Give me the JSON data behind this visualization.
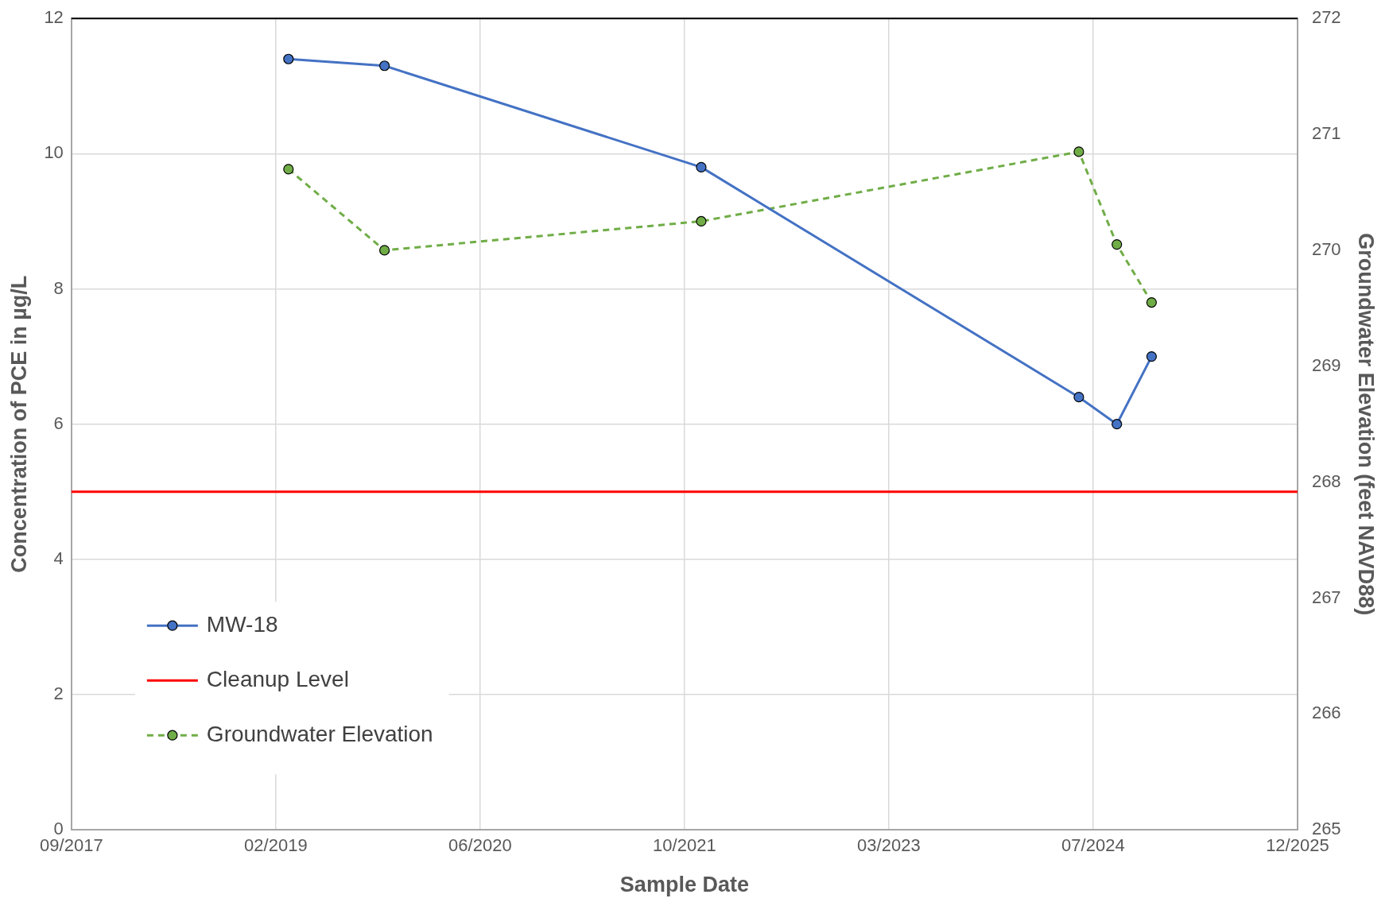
{
  "chart_data": {
    "type": "line",
    "xlabel": "Sample Date",
    "ylabel": "Concentration of PCE in µg/L",
    "y2label": "Groundwater Elevation (feet NAVD88)",
    "xlim": [
      "2017-09-22",
      "2025-12-09"
    ],
    "xticks": [
      {
        "value": "2017-09-22",
        "label": "09/2017"
      },
      {
        "value": "2019-02-04",
        "label": "02/2019"
      },
      {
        "value": "2020-06-18",
        "label": "06/2020"
      },
      {
        "value": "2021-10-31",
        "label": "10/2021"
      },
      {
        "value": "2023-03-15",
        "label": "03/2023"
      },
      {
        "value": "2024-07-27",
        "label": "07/2024"
      },
      {
        "value": "2025-12-09",
        "label": "12/2025"
      }
    ],
    "ylim": [
      0,
      12
    ],
    "yticks": [
      0,
      2,
      4,
      6,
      8,
      10,
      12
    ],
    "y2lim": [
      265,
      272
    ],
    "y2ticks": [
      265,
      266,
      267,
      268,
      269,
      270,
      271,
      272
    ],
    "series": [
      {
        "name": "MW-18",
        "color": "#4472c4",
        "x": [
          "2019-03-07",
          "2019-10-28",
          "2021-12-11",
          "2024-06-22",
          "2024-09-23",
          "2024-12-17"
        ],
        "values": [
          11.4,
          11.3,
          9.8,
          6.4,
          6.0,
          7.0
        ],
        "line_style": "solid"
      },
      {
        "name": "Groundwater Elevation",
        "color": "#70ad47",
        "axis": "y2",
        "x": [
          "2019-03-07",
          "2019-10-28",
          "2021-12-11",
          "2024-06-22",
          "2024-09-23",
          "2024-12-17"
        ],
        "values": [
          270.7,
          270.0,
          270.25,
          270.85,
          270.05,
          269.55
        ],
        "line_style": "dashed"
      }
    ],
    "ref_lines": [
      {
        "axis": "y",
        "value": 5,
        "label": "Cleanup Level",
        "color": "#ff0000"
      }
    ],
    "marker": "circle",
    "grid": true,
    "legend": "bottom left"
  }
}
